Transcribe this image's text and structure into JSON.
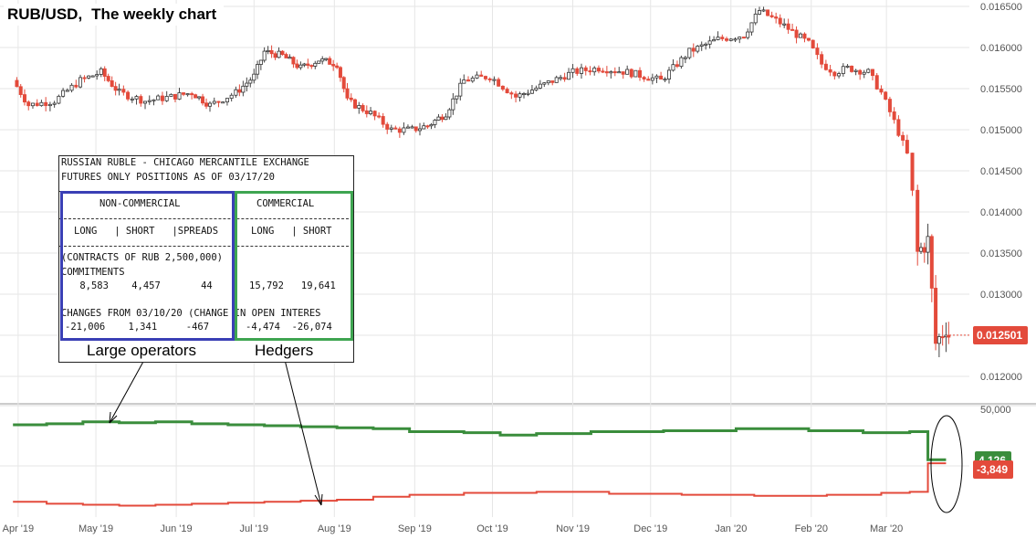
{
  "title": {
    "pair": "RUB/USD,",
    "subtitle": "The weekly chart"
  },
  "chart_data": [
    {
      "type": "line",
      "subtype": "candlestick",
      "name": "RUB/USD",
      "x": [
        "Apr '19",
        "May '19",
        "Jun '19",
        "Jul '19",
        "Aug '19",
        "Sep '19",
        "Oct '19",
        "Nov '19",
        "Dec '19",
        "Jan '20",
        "Feb '20",
        "Mar '20"
      ],
      "close_path": [
        [
          "2019-03-30",
          0.0156
        ],
        [
          "2019-04-05",
          0.0153
        ],
        [
          "2019-04-15",
          0.01535
        ],
        [
          "2019-04-25",
          0.0156
        ],
        [
          "2019-05-03",
          0.0157
        ],
        [
          "2019-05-10",
          0.01545
        ],
        [
          "2019-05-20",
          0.01535
        ],
        [
          "2019-05-30",
          0.0154
        ],
        [
          "2019-06-07",
          0.01545
        ],
        [
          "2019-06-14",
          0.0153
        ],
        [
          "2019-06-24",
          0.01545
        ],
        [
          "2019-07-01",
          0.01565
        ],
        [
          "2019-07-05",
          0.01595
        ],
        [
          "2019-07-12",
          0.0159
        ],
        [
          "2019-07-19",
          0.01575
        ],
        [
          "2019-07-26",
          0.01585
        ],
        [
          "2019-08-02",
          0.0158
        ],
        [
          "2019-08-06",
          0.01535
        ],
        [
          "2019-08-15",
          0.0152
        ],
        [
          "2019-08-23",
          0.015
        ],
        [
          "2019-08-31",
          0.015
        ],
        [
          "2019-09-06",
          0.01505
        ],
        [
          "2019-09-13",
          0.0152
        ],
        [
          "2019-09-20",
          0.0156
        ],
        [
          "2019-09-30",
          0.01565
        ],
        [
          "2019-10-10",
          0.0154
        ],
        [
          "2019-10-21",
          0.01555
        ],
        [
          "2019-11-01",
          0.0157
        ],
        [
          "2019-11-11",
          0.01575
        ],
        [
          "2019-11-22",
          0.0157
        ],
        [
          "2019-12-05",
          0.0156
        ],
        [
          "2019-12-16",
          0.01595
        ],
        [
          "2019-12-27",
          0.0161
        ],
        [
          "2020-01-06",
          0.01615
        ],
        [
          "2020-01-12",
          0.01645
        ],
        [
          "2020-01-20",
          0.0163
        ],
        [
          "2020-01-31",
          0.01605
        ],
        [
          "2020-02-05",
          0.0158
        ],
        [
          "2020-02-10",
          0.0157
        ],
        [
          "2020-02-15",
          0.01575
        ],
        [
          "2020-02-23",
          0.0157
        ],
        [
          "2020-02-28",
          0.01545
        ],
        [
          "2020-03-04",
          0.0151
        ],
        [
          "2020-03-09",
          0.0147
        ],
        [
          "2020-03-11",
          0.0142
        ],
        [
          "2020-03-13",
          0.0135
        ],
        [
          "2020-03-17",
          0.01365
        ],
        [
          "2020-03-20",
          0.0124
        ],
        [
          "2020-03-24",
          0.0126
        ],
        [
          "2020-03-25",
          0.012501
        ]
      ],
      "ylim": [
        0.01185,
        0.0167
      ],
      "y_ticks": [
        "0.016500",
        "0.016000",
        "0.015500",
        "0.015000",
        "0.014500",
        "0.014000",
        "0.013500",
        "0.013000",
        "0.012500",
        "0.012000"
      ],
      "last_value": "0.012501",
      "grid": true
    },
    {
      "type": "line",
      "name": "COT net positions",
      "series": [
        {
          "name": "Hedgers",
          "color": "#3a8d3c",
          "steps": [
            [
              "2019-03-30",
              0.76
            ],
            [
              "2019-04-12",
              0.78
            ],
            [
              "2019-04-26",
              0.82
            ],
            [
              "2019-05-10",
              0.8
            ],
            [
              "2019-05-24",
              0.82
            ],
            [
              "2019-06-07",
              0.78
            ],
            [
              "2019-06-21",
              0.76
            ],
            [
              "2019-07-05",
              0.74
            ],
            [
              "2019-07-19",
              0.72
            ],
            [
              "2019-08-02",
              0.7
            ],
            [
              "2019-08-16",
              0.68
            ],
            [
              "2019-08-30",
              0.62
            ],
            [
              "2019-09-20",
              0.6
            ],
            [
              "2019-10-04",
              0.55
            ],
            [
              "2019-10-18",
              0.58
            ],
            [
              "2019-11-08",
              0.62
            ],
            [
              "2019-12-06",
              0.64
            ],
            [
              "2020-01-03",
              0.68
            ],
            [
              "2020-01-31",
              0.64
            ],
            [
              "2020-02-21",
              0.6
            ],
            [
              "2020-03-10",
              0.62
            ],
            [
              "2020-03-17",
              0.05
            ]
          ],
          "last_label": "4,126"
        },
        {
          "name": "Large operators",
          "color": "#e34a3b",
          "steps": [
            [
              "2019-03-30",
              -0.8
            ],
            [
              "2019-04-12",
              -0.84
            ],
            [
              "2019-04-26",
              -0.86
            ],
            [
              "2019-05-10",
              -0.88
            ],
            [
              "2019-05-24",
              -0.86
            ],
            [
              "2019-06-07",
              -0.84
            ],
            [
              "2019-06-21",
              -0.82
            ],
            [
              "2019-07-05",
              -0.8
            ],
            [
              "2019-07-19",
              -0.78
            ],
            [
              "2019-08-02",
              -0.76
            ],
            [
              "2019-08-16",
              -0.7
            ],
            [
              "2019-08-30",
              -0.66
            ],
            [
              "2019-09-20",
              -0.62
            ],
            [
              "2019-10-18",
              -0.6
            ],
            [
              "2019-11-15",
              -0.64
            ],
            [
              "2019-12-13",
              -0.66
            ],
            [
              "2020-01-10",
              -0.68
            ],
            [
              "2020-02-07",
              -0.66
            ],
            [
              "2020-02-28",
              -0.62
            ],
            [
              "2020-03-10",
              -0.6
            ],
            [
              "2020-03-17",
              -0.02
            ]
          ],
          "last_label": "-3,849"
        }
      ],
      "y_ticks": [
        "50,000"
      ]
    }
  ],
  "cot_report": {
    "line1": "RUSSIAN RUBLE - CHICAGO MERCANTILE EXCHANGE",
    "line2": "FUTURES ONLY POSITIONS AS OF 03/17/20",
    "noncommercial": "NON-COMMERCIAL",
    "commercial": "COMMERCIAL",
    "cols_nc": "LONG   | SHORT   |SPREADS",
    "cols_c": "LONG   | SHORT",
    "contracts": "(CONTRACTS OF RUB 2,500,000)",
    "commitments": "COMMITMENTS",
    "commit_values_nc": " 8,583    4,457       44",
    "commit_values_c": "15,792   19,641",
    "changes": "CHANGES FROM 03/10/20 (CHANGE IN OPEN INTERES",
    "change_values_nc": "-21,006    1,341     -467",
    "change_values_c": "-4,474  -26,074",
    "large_label": "Large operators",
    "hedgers_label": "Hedgers"
  }
}
